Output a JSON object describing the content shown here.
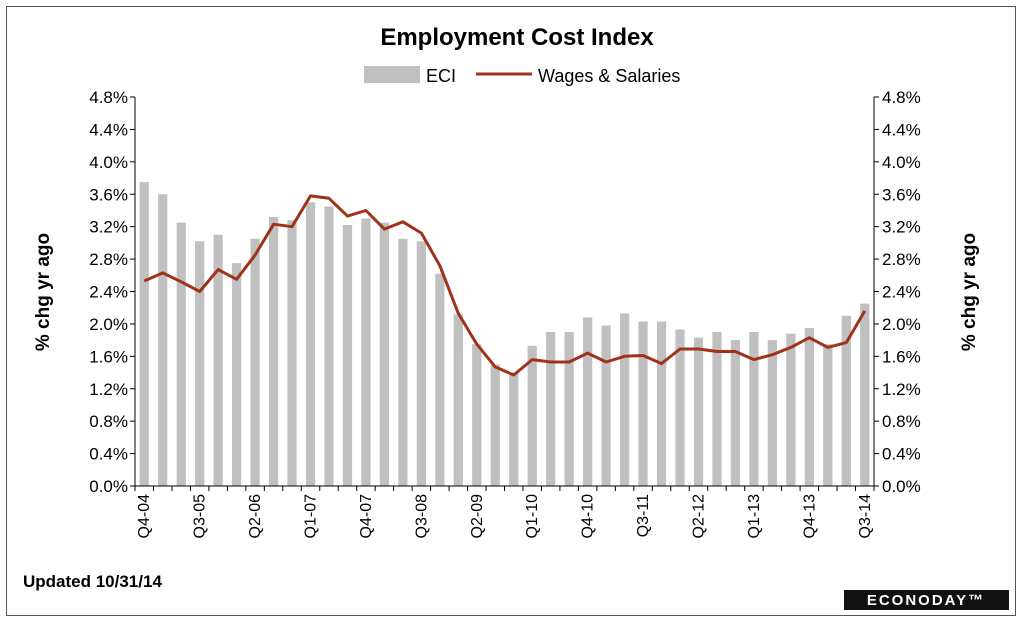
{
  "chart_data": {
    "type": "bar",
    "title": "Employment Cost Index",
    "ylabel_left": "% chg yr ago",
    "ylabel_right": "% chg yr ago",
    "ylim": [
      0,
      4.8
    ],
    "yticks": [
      "0.0%",
      "0.4%",
      "0.8%",
      "1.2%",
      "1.6%",
      "2.0%",
      "2.4%",
      "2.8%",
      "3.2%",
      "3.6%",
      "4.0%",
      "4.4%",
      "4.8%"
    ],
    "xtick_labels": [
      "Q4-04",
      "Q3-05",
      "Q2-06",
      "Q1-07",
      "Q4-07",
      "Q3-08",
      "Q2-09",
      "Q1-10",
      "Q4-10",
      "Q3-11",
      "Q2-12",
      "Q1-13",
      "Q4-13",
      "Q3-14"
    ],
    "xtick_every": 3,
    "grid": false,
    "legend_position": "top",
    "series": [
      {
        "name": "ECI",
        "type": "bar",
        "color": "#c0c0c0",
        "values": [
          3.75,
          3.6,
          3.25,
          3.02,
          3.1,
          2.75,
          3.05,
          3.32,
          3.28,
          3.5,
          3.45,
          3.22,
          3.3,
          3.25,
          3.05,
          3.02,
          2.62,
          2.12,
          1.75,
          1.5,
          1.4,
          1.73,
          1.9,
          1.9,
          2.08,
          1.98,
          2.13,
          2.03,
          2.03,
          1.93,
          1.83,
          1.9,
          1.8,
          1.9,
          1.8,
          1.88,
          1.95,
          1.75,
          2.1,
          2.25
        ]
      },
      {
        "name": "Wages & Salaries",
        "type": "line",
        "color": "#a0321a",
        "values": [
          2.53,
          2.63,
          2.52,
          2.4,
          2.67,
          2.55,
          2.85,
          3.23,
          3.2,
          3.58,
          3.55,
          3.33,
          3.4,
          3.17,
          3.26,
          3.12,
          2.72,
          2.13,
          1.75,
          1.47,
          1.37,
          1.56,
          1.53,
          1.53,
          1.64,
          1.53,
          1.6,
          1.61,
          1.51,
          1.69,
          1.69,
          1.66,
          1.66,
          1.56,
          1.62,
          1.71,
          1.83,
          1.71,
          1.77,
          2.16
        ]
      }
    ]
  },
  "footer": {
    "updated": "Updated 10/31/14",
    "brand": "ECONODAY™"
  }
}
